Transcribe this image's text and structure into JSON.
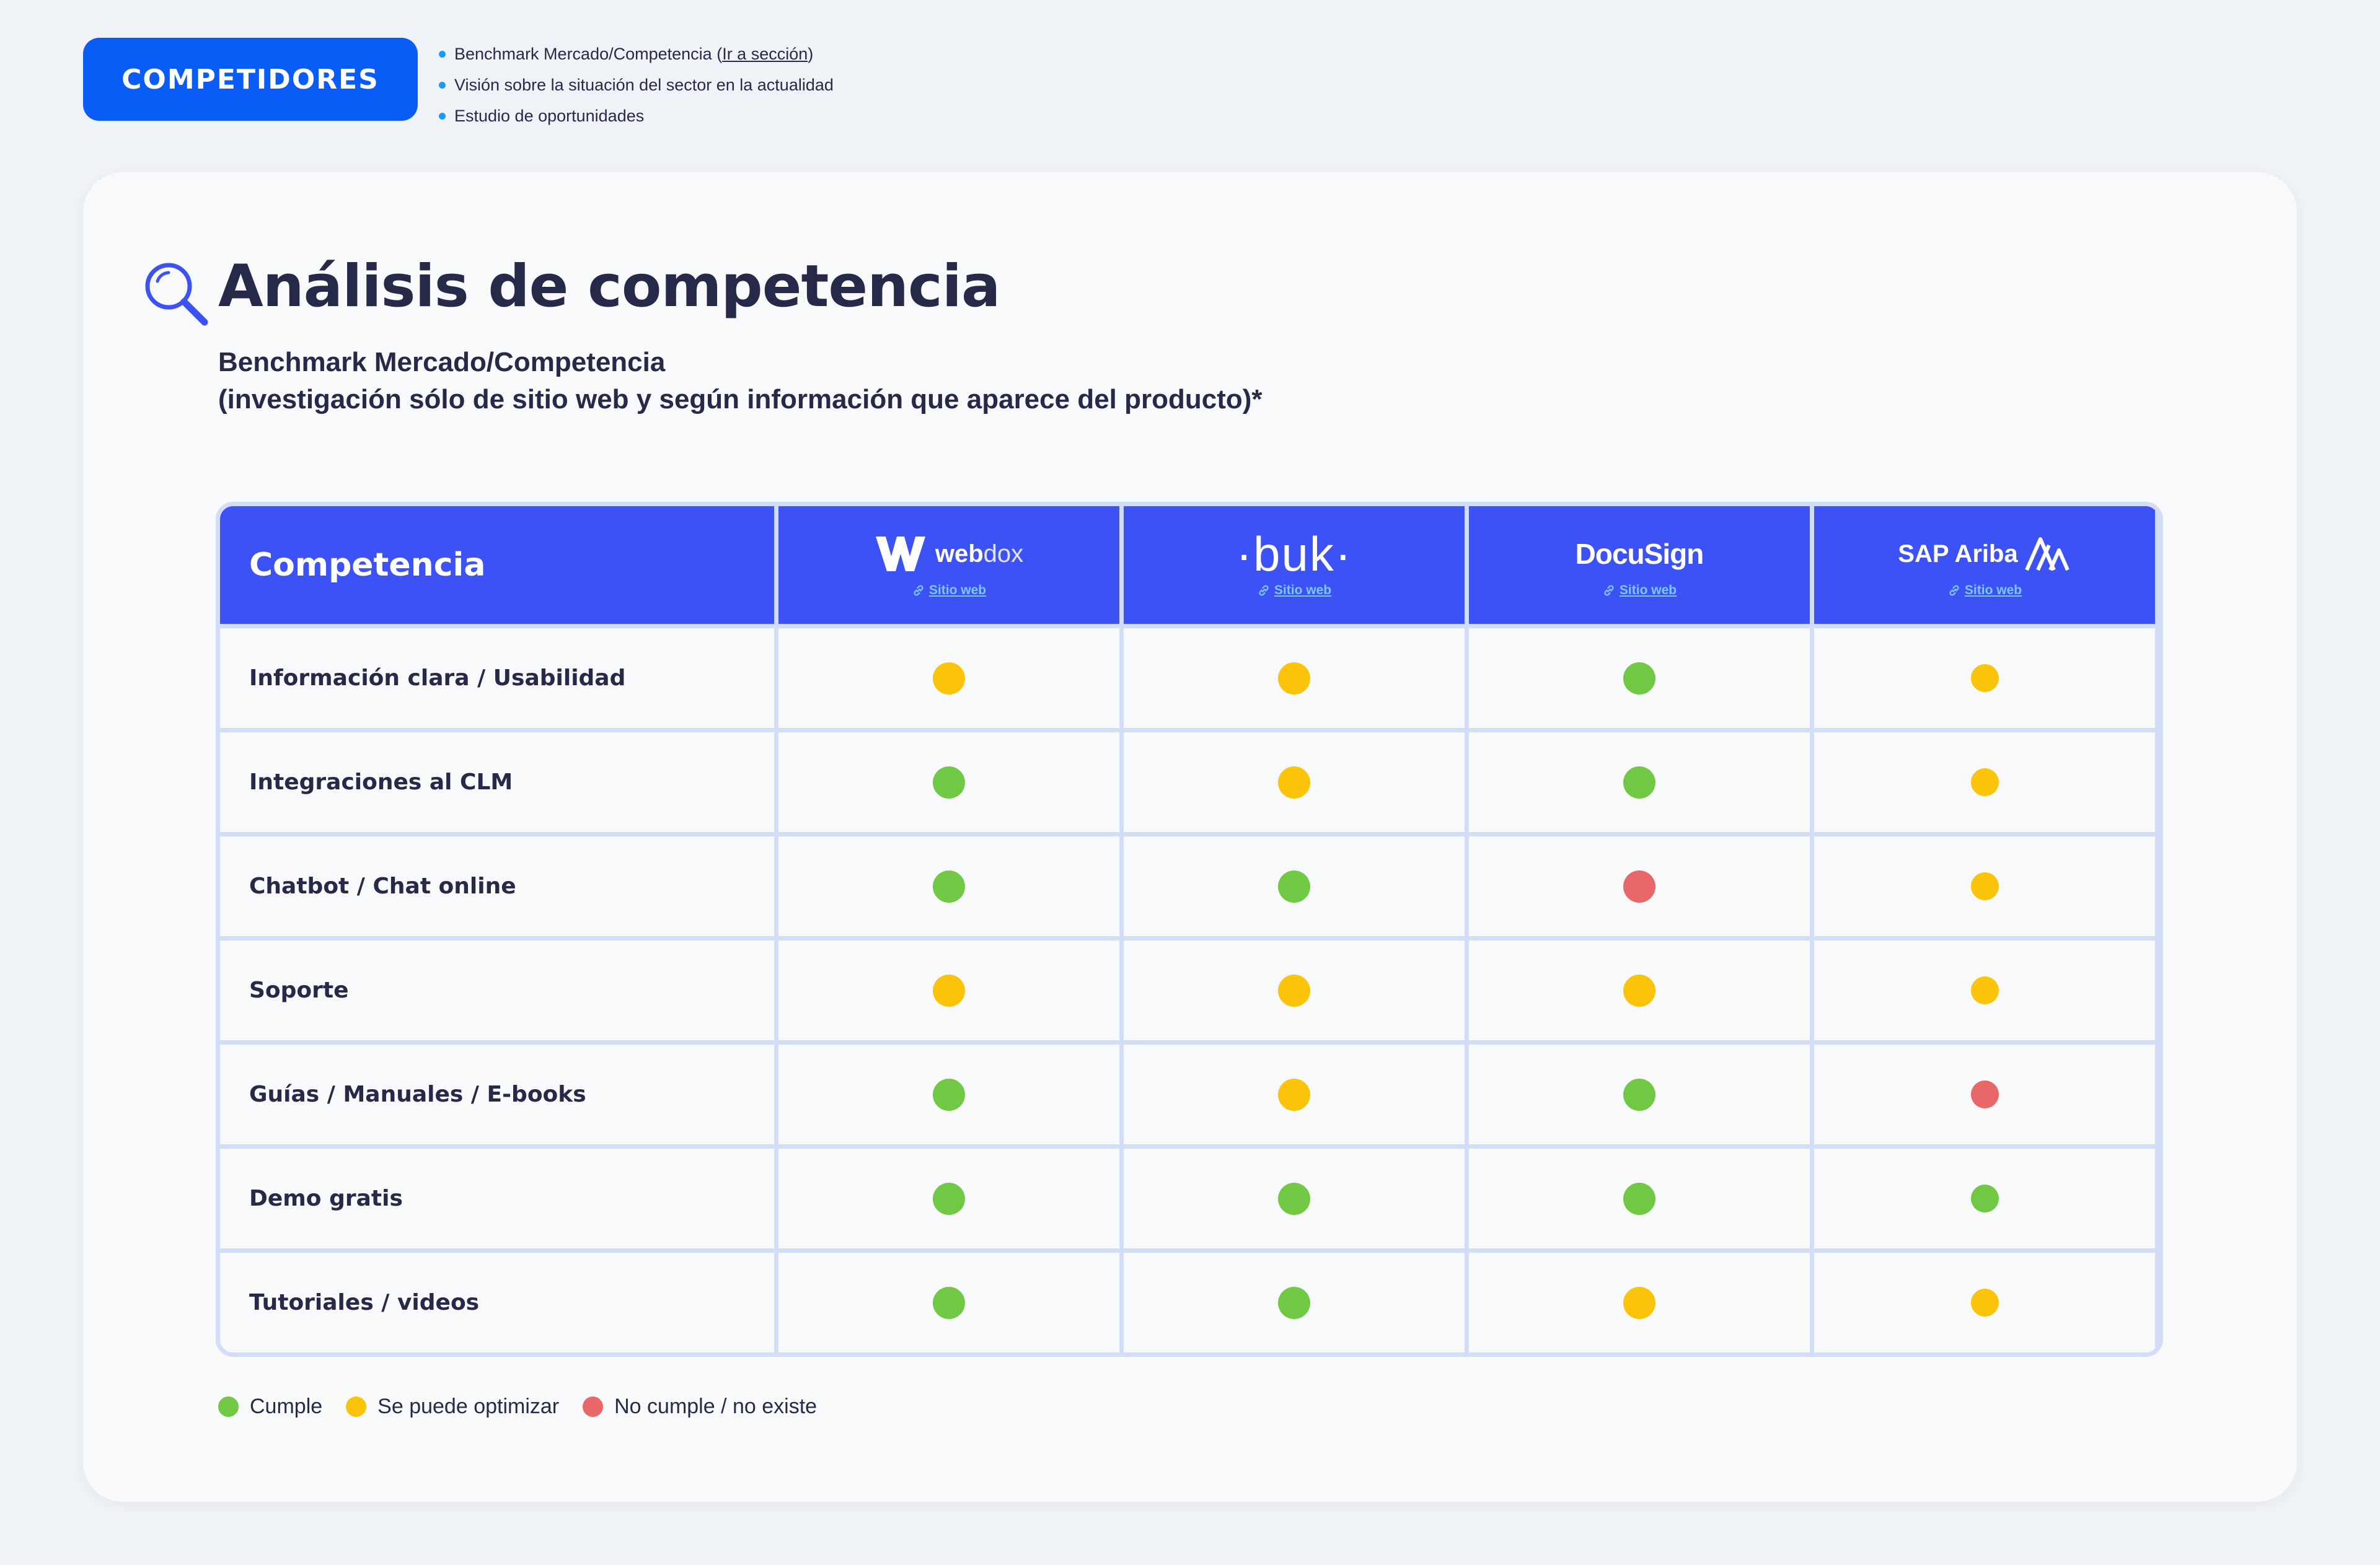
{
  "colors": {
    "cumple": "#71c844",
    "optimizar": "#fcc30b",
    "no_cumple": "#e8686a"
  },
  "header": {
    "badge": "COMPETIDORES",
    "bullets": [
      {
        "text": "Benchmark Mercado/Competencia (",
        "link": "Ir a sección",
        "after": ")"
      },
      {
        "text": "Visión sobre la situación del sector en la actualidad"
      },
      {
        "text": "Estudio de oportunidades"
      }
    ]
  },
  "card": {
    "title_icon": "magnifier-icon",
    "title": "Análisis de competencia",
    "subtitle_line1": "Benchmark Mercado/Competencia",
    "subtitle_line2": "(investigación sólo de sitio web y según información que aparece del producto)*"
  },
  "table": {
    "first_header": "Competencia",
    "link_icon": "link-icon",
    "competitors": [
      {
        "name": "webdox",
        "logo_a": "web",
        "logo_b": "dox",
        "link": "Sitio web"
      },
      {
        "name": "buk",
        "logo": "·buk·",
        "link": "Sitio web"
      },
      {
        "name": "DocuSign",
        "logo": "DocuSign",
        "link": "Sitio web"
      },
      {
        "name": "SAP Ariba",
        "logo": "SAP Ariba",
        "link": "Sitio web"
      }
    ],
    "rows": [
      {
        "label": "Información clara / Usabilidad",
        "status": [
          "optimizar",
          "optimizar",
          "cumple",
          "optimizar"
        ]
      },
      {
        "label": "Integraciones al CLM",
        "status": [
          "cumple",
          "optimizar",
          "cumple",
          "optimizar"
        ]
      },
      {
        "label": "Chatbot / Chat online",
        "status": [
          "cumple",
          "cumple",
          "no_cumple",
          "optimizar"
        ]
      },
      {
        "label": "Soporte",
        "status": [
          "optimizar",
          "optimizar",
          "optimizar",
          "optimizar"
        ]
      },
      {
        "label": "Guías / Manuales / E-books",
        "status": [
          "cumple",
          "optimizar",
          "cumple",
          "no_cumple"
        ]
      },
      {
        "label": "Demo gratis",
        "status": [
          "cumple",
          "cumple",
          "cumple",
          "cumple"
        ]
      },
      {
        "label": "Tutoriales / videos",
        "status": [
          "cumple",
          "cumple",
          "optimizar",
          "optimizar"
        ]
      }
    ]
  },
  "legend": [
    {
      "key": "cumple",
      "label": "Cumple"
    },
    {
      "key": "optimizar",
      "label": "Se puede optimizar"
    },
    {
      "key": "no_cumple",
      "label": "No cumple / no existe"
    }
  ]
}
